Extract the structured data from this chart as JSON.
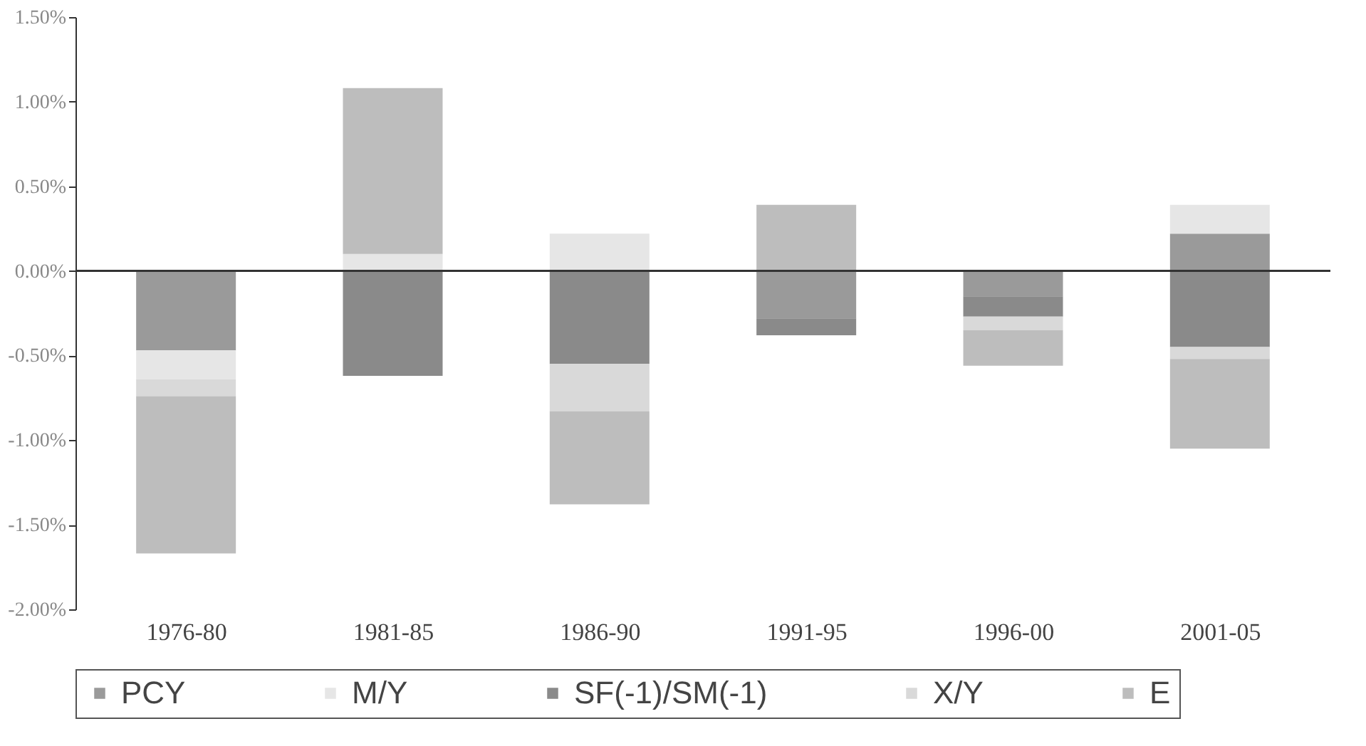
{
  "chart_data": {
    "type": "bar",
    "stacked": true,
    "categories": [
      "1976-80",
      "1981-85",
      "1986-90",
      "1991-95",
      "1996-00",
      "2001-05"
    ],
    "series": [
      {
        "name": "PCY",
        "color": "#9a9a9a",
        "values": [
          -0.47,
          null,
          null,
          -0.28,
          -0.15,
          0.22
        ]
      },
      {
        "name": "M/Y",
        "color": "#e6e6e6",
        "values": [
          -0.17,
          0.1,
          0.22,
          null,
          null,
          0.17
        ]
      },
      {
        "name": "SF(-1)/SM(-1)",
        "color": "#8a8a8a",
        "values": [
          null,
          -0.62,
          -0.55,
          -0.1,
          -0.12,
          -0.45
        ]
      },
      {
        "name": "X/Y",
        "color": "#d9d9d9",
        "values": [
          -0.1,
          null,
          -0.28,
          null,
          -0.08,
          -0.07
        ]
      },
      {
        "name": "E",
        "color": "#bdbdbd",
        "values": [
          -0.93,
          0.98,
          -0.55,
          0.39,
          -0.21,
          -0.53
        ]
      }
    ],
    "ylim": [
      -2.0,
      1.5
    ],
    "yticks": [
      {
        "value": -2.0,
        "label": "-2.00%"
      },
      {
        "value": -1.5,
        "label": "-1.50%"
      },
      {
        "value": -1.0,
        "label": "-1.00%"
      },
      {
        "value": -0.5,
        "label": "-0.50%"
      },
      {
        "value": 0.0,
        "label": "0.00%"
      },
      {
        "value": 0.5,
        "label": "0.50%"
      },
      {
        "value": 1.0,
        "label": "1.00%"
      },
      {
        "value": 1.5,
        "label": "1.50%"
      }
    ],
    "legend": "bottom"
  }
}
